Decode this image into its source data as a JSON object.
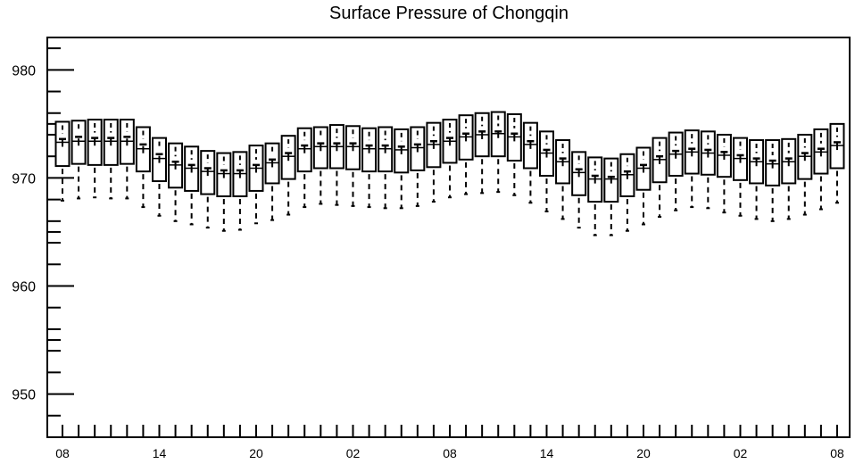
{
  "chart_data": {
    "type": "boxplot",
    "title": "Surface Pressure of Chongqin",
    "xlabel": "",
    "ylabel": "",
    "ylim": [
      946,
      983
    ],
    "y_ticks": [
      950,
      960,
      970,
      980
    ],
    "y_tick_labels": [
      "950",
      "960",
      "970",
      "980"
    ],
    "x_tick_labels": [
      "08",
      "14",
      "20",
      "02",
      "08",
      "14",
      "20",
      "02",
      "08"
    ],
    "x_tick_label_hours": [
      0,
      6,
      12,
      18,
      24,
      30,
      36,
      42,
      48
    ],
    "hours_from_first_label": [
      0,
      1,
      2,
      3,
      4,
      5,
      6,
      7,
      8,
      9,
      10,
      11,
      12,
      13,
      14,
      15,
      16,
      17,
      18,
      19,
      20,
      21,
      22,
      23,
      24,
      25,
      26,
      27,
      28,
      29,
      30,
      31,
      32,
      33,
      34,
      35,
      36,
      37,
      38,
      39,
      40,
      41,
      42,
      43,
      44,
      45,
      46,
      47,
      48
    ],
    "box_top": [
      975.2,
      975.3,
      975.4,
      975.4,
      975.4,
      974.7,
      973.7,
      973.2,
      972.9,
      972.5,
      972.3,
      972.4,
      973.0,
      973.2,
      973.9,
      974.6,
      974.7,
      974.9,
      974.8,
      974.6,
      974.7,
      974.5,
      974.7,
      975.1,
      975.4,
      975.8,
      976.0,
      976.1,
      975.9,
      975.1,
      974.3,
      973.5,
      972.4,
      971.9,
      971.8,
      972.2,
      972.8,
      973.7,
      974.2,
      974.4,
      974.3,
      974.0,
      973.7,
      973.5,
      973.5,
      973.6,
      974.0,
      974.5,
      975.0
    ],
    "box_bottom": [
      971.1,
      971.3,
      971.2,
      971.2,
      971.3,
      970.6,
      969.7,
      969.1,
      968.8,
      968.5,
      968.3,
      968.3,
      968.8,
      969.5,
      969.9,
      970.6,
      970.9,
      970.9,
      970.8,
      970.6,
      970.6,
      970.5,
      970.7,
      971.0,
      971.4,
      971.7,
      972.0,
      972.0,
      971.6,
      970.9,
      970.2,
      969.5,
      968.4,
      967.8,
      967.8,
      968.3,
      968.9,
      969.6,
      970.2,
      970.4,
      970.3,
      970.1,
      969.8,
      969.5,
      969.3,
      969.5,
      969.9,
      970.4,
      970.9
    ],
    "median": [
      973.3,
      973.4,
      973.4,
      973.4,
      973.4,
      972.7,
      971.8,
      971.2,
      970.9,
      970.6,
      970.4,
      970.4,
      970.9,
      971.4,
      972.0,
      972.7,
      972.9,
      972.9,
      972.9,
      972.7,
      972.7,
      972.6,
      972.8,
      973.1,
      973.4,
      973.8,
      974.0,
      974.1,
      973.8,
      973.1,
      972.3,
      971.5,
      970.5,
      969.9,
      969.9,
      970.3,
      970.9,
      971.7,
      972.2,
      972.4,
      972.3,
      972.1,
      971.8,
      971.5,
      971.3,
      971.5,
      972.0,
      972.4,
      973.0
    ],
    "mean": [
      973.6,
      973.8,
      973.7,
      973.7,
      973.8,
      973.1,
      972.2,
      971.5,
      971.2,
      970.9,
      970.7,
      970.7,
      971.2,
      971.7,
      972.3,
      973.0,
      973.2,
      973.2,
      973.2,
      973.0,
      973.0,
      972.9,
      973.1,
      973.4,
      973.7,
      974.1,
      974.3,
      974.3,
      974.1,
      973.4,
      972.6,
      971.8,
      970.8,
      970.2,
      970.1,
      970.6,
      971.2,
      972.0,
      972.5,
      972.7,
      972.6,
      972.4,
      972.1,
      971.8,
      971.6,
      971.8,
      972.3,
      972.7,
      973.3
    ],
    "upper_whisker_end": [
      975.2,
      975.3,
      975.4,
      975.4,
      975.4,
      974.7,
      973.7,
      973.2,
      972.9,
      972.5,
      972.3,
      972.4,
      973.0,
      973.2,
      973.9,
      974.6,
      974.7,
      974.9,
      974.8,
      974.6,
      974.7,
      974.5,
      974.7,
      975.1,
      975.4,
      975.8,
      976.0,
      976.1,
      975.9,
      975.1,
      974.3,
      973.5,
      972.4,
      971.9,
      971.8,
      972.2,
      972.8,
      973.7,
      974.2,
      974.4,
      974.3,
      974.0,
      973.7,
      973.5,
      973.5,
      973.6,
      974.0,
      974.5,
      975.0
    ],
    "lower_whisker_end": [
      967.9,
      968.1,
      968.2,
      968.1,
      968.1,
      967.3,
      966.5,
      966.0,
      965.7,
      965.4,
      965.1,
      965.2,
      965.8,
      966.1,
      966.6,
      967.3,
      967.6,
      967.5,
      967.4,
      967.3,
      967.2,
      967.2,
      967.4,
      967.8,
      968.2,
      968.5,
      968.6,
      968.7,
      968.4,
      967.7,
      966.9,
      966.2,
      965.4,
      964.7,
      964.7,
      965.1,
      965.7,
      966.4,
      967.0,
      967.3,
      967.2,
      966.8,
      966.5,
      966.2,
      966.0,
      966.2,
      966.6,
      967.1,
      967.7
    ],
    "grid": false,
    "legend": "none"
  }
}
